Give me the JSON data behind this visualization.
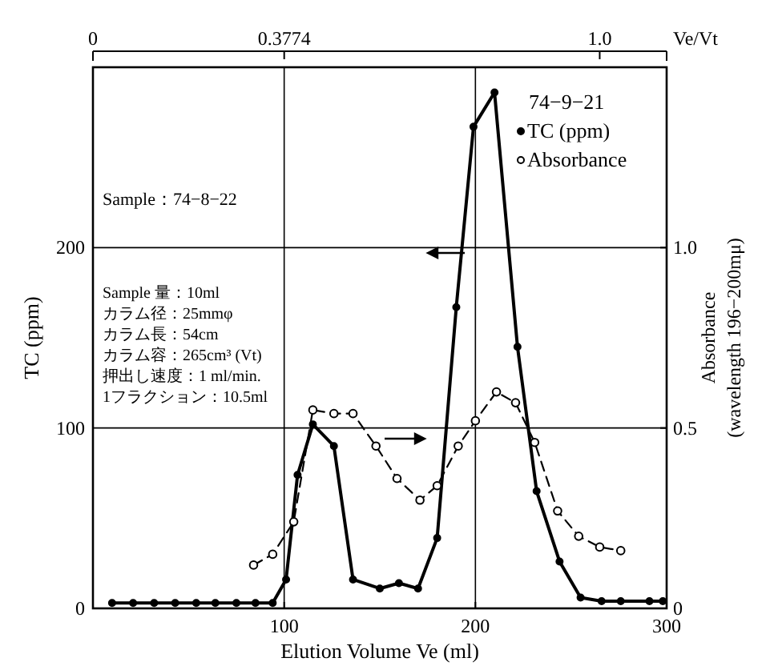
{
  "chart_data": {
    "type": "line",
    "xlabel": "Elution Volume Ve (ml)",
    "ylabel": "TC (ppm)",
    "y2label": "Absorbance\n(wavelength 196−200mμ)",
    "x2label": "Ve/Vt",
    "legend_title": "74−9−21",
    "xlim": [
      0,
      300
    ],
    "xticks": [
      100,
      200,
      300
    ],
    "ylim": [
      0,
      300
    ],
    "yticks": [
      0,
      100,
      200
    ],
    "y2lim": [
      0,
      1.5
    ],
    "y2ticks": [
      0,
      0.5,
      {
        "value": 1,
        "label": "1.0"
      }
    ],
    "x2lim": [
      0,
      1.1321
    ],
    "x2ticks": [
      0,
      0.3774,
      {
        "value": 1,
        "label": "1.0"
      }
    ],
    "grid": true,
    "legend": "top right",
    "marker": "circle",
    "annotations": [
      "Sample：74−8−22",
      "Sample 量：10ml",
      "カラム径：25mmφ",
      "カラム長：54cm",
      "カラム容：265cm³ (Vt)",
      "押出し速度：1 ml/min.",
      "1フラクション：10.5ml"
    ],
    "series": [
      {
        "name": "TC (ppm)",
        "color": "#000000",
        "line_style": "solid",
        "x": [
          10,
          21,
          32,
          43,
          54,
          64,
          75,
          85,
          94,
          101,
          107,
          115,
          126,
          136,
          150,
          160,
          170,
          180,
          190,
          199,
          210,
          222,
          232,
          244,
          255,
          266,
          276,
          291,
          298
        ],
        "values": [
          3,
          3,
          3,
          3,
          3,
          3,
          3,
          3,
          3,
          16,
          74,
          102,
          90,
          16,
          11,
          14,
          11,
          39,
          167,
          267,
          286,
          145,
          65,
          26,
          6,
          4,
          4,
          4,
          4
        ]
      },
      {
        "name": "Absorbance",
        "color": "#000000",
        "line_style": "dashed",
        "axis": "y2",
        "x": [
          84,
          94,
          105,
          115,
          126,
          136,
          148,
          159,
          171,
          180,
          191,
          200,
          211,
          221,
          231,
          243,
          254,
          265,
          276
        ],
        "values": [
          0.12,
          0.15,
          0.24,
          0.55,
          0.54,
          0.54,
          0.45,
          0.36,
          0.3,
          0.34,
          0.45,
          0.52,
          0.6,
          0.57,
          0.46,
          0.27,
          0.2,
          0.17,
          0.16
        ]
      }
    ]
  }
}
